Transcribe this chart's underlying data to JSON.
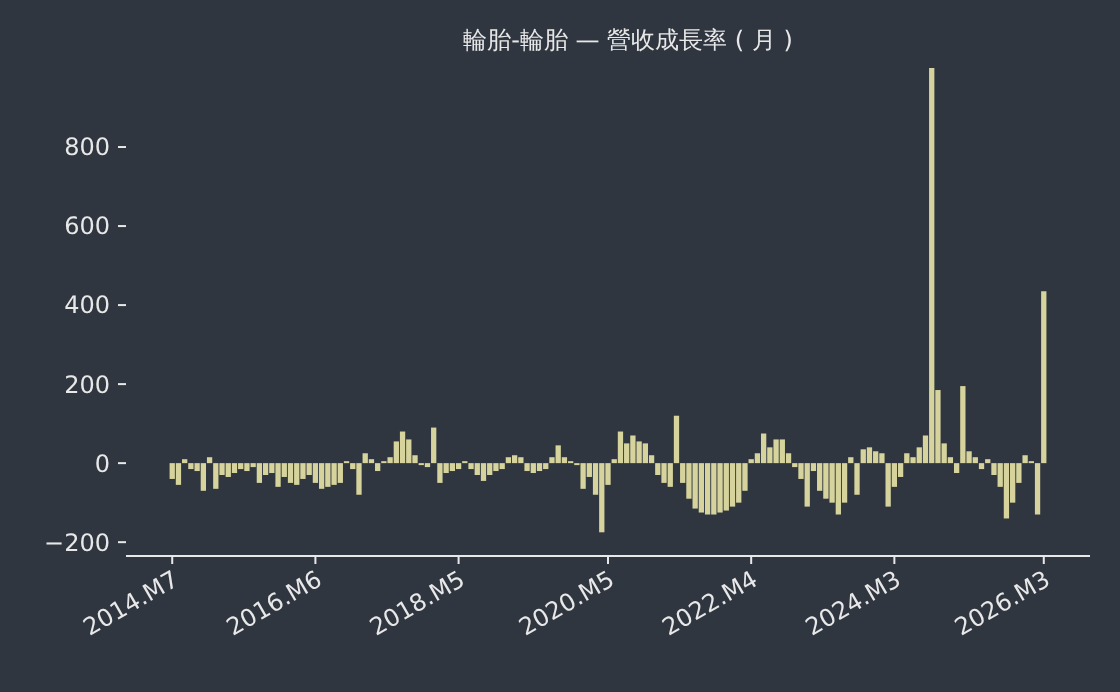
{
  "chart_data": {
    "type": "bar",
    "title": "輪胎-輪胎 — 營收成長率 ( 月 )",
    "categories": [
      "2014.M7",
      null,
      null,
      null,
      null,
      null,
      null,
      null,
      null,
      null,
      null,
      null,
      null,
      null,
      null,
      null,
      null,
      null,
      null,
      null,
      null,
      null,
      null,
      "2016.M6",
      null,
      null,
      null,
      null,
      null,
      null,
      null,
      null,
      null,
      null,
      null,
      null,
      null,
      null,
      null,
      null,
      null,
      null,
      null,
      null,
      null,
      null,
      "2018.M5",
      null,
      null,
      null,
      null,
      null,
      null,
      null,
      null,
      null,
      null,
      null,
      null,
      null,
      null,
      null,
      null,
      null,
      null,
      null,
      null,
      null,
      null,
      null,
      "2020.M5",
      null,
      null,
      null,
      null,
      null,
      null,
      null,
      null,
      null,
      null,
      null,
      null,
      null,
      null,
      null,
      null,
      null,
      null,
      null,
      null,
      null,
      null,
      "2022.M4",
      null,
      null,
      null,
      null,
      null,
      null,
      null,
      null,
      null,
      null,
      null,
      null,
      null,
      null,
      null,
      null,
      null,
      null,
      null,
      null,
      null,
      null,
      "2024.M3",
      null,
      null,
      null,
      null,
      null,
      null,
      null,
      null,
      null,
      null,
      null,
      null,
      null,
      null,
      null,
      null,
      null,
      null,
      null,
      null,
      null,
      null,
      null,
      "2026.M3"
    ],
    "values": [
      -40,
      -55,
      10,
      -15,
      -20,
      -70,
      15,
      -65,
      -30,
      -35,
      -25,
      -15,
      -20,
      -10,
      -50,
      -30,
      -25,
      -60,
      -35,
      -50,
      -55,
      -40,
      -30,
      -50,
      -65,
      -60,
      -55,
      -50,
      5,
      -15,
      -80,
      25,
      10,
      -20,
      5,
      15,
      55,
      80,
      60,
      20,
      -5,
      -10,
      90,
      -50,
      -25,
      -20,
      -15,
      5,
      -15,
      -30,
      -45,
      -30,
      -20,
      -15,
      15,
      20,
      15,
      -20,
      -25,
      -20,
      -15,
      15,
      45,
      15,
      5,
      -5,
      -65,
      -35,
      -80,
      -175,
      -55,
      10,
      80,
      50,
      70,
      55,
      50,
      20,
      -30,
      -50,
      -60,
      120,
      -50,
      -90,
      -115,
      -125,
      -130,
      -130,
      -125,
      -120,
      -110,
      -100,
      -70,
      10,
      25,
      75,
      40,
      60,
      60,
      25,
      -10,
      -40,
      -110,
      -20,
      -70,
      -90,
      -100,
      -130,
      -100,
      15,
      -80,
      35,
      40,
      30,
      25,
      -110,
      -60,
      -35,
      25,
      15,
      40,
      70,
      1000,
      185,
      50,
      15,
      -25,
      195,
      30,
      15,
      -15,
      10,
      -30,
      -60,
      -140,
      -100,
      -50,
      20,
      5,
      -130,
      435
    ],
    "color": "#d6d49c",
    "ylim": [
      -235,
      1000
    ],
    "yticks": [
      -200,
      0,
      200,
      400,
      600,
      800
    ]
  }
}
